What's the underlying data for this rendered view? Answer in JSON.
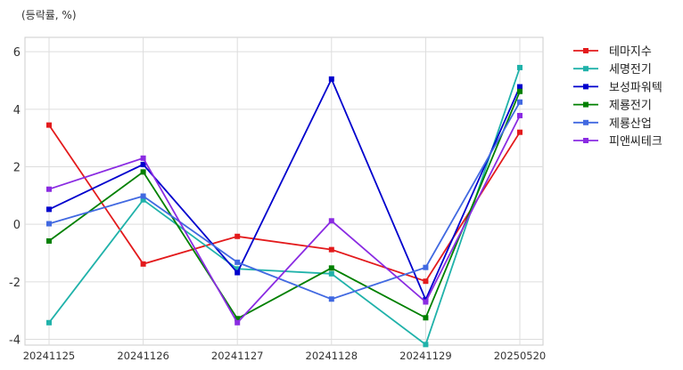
{
  "chart_data": {
    "type": "line",
    "title": "",
    "unit_label": "(등락률, %)",
    "xlabel": "",
    "ylabel": "",
    "x": [
      "20241125",
      "20241126",
      "20241127",
      "20241128",
      "20241129",
      "20250520"
    ],
    "ylim": [
      -4.2,
      6.5
    ],
    "yticks": [
      -4,
      -2,
      0,
      2,
      4,
      6
    ],
    "grid": true,
    "legend_position": "outside-top-right",
    "series": [
      {
        "name": "테마지수",
        "color": "#e31a1c",
        "values": [
          3.45,
          -1.38,
          -0.42,
          -0.88,
          -1.98,
          3.2
        ]
      },
      {
        "name": "세명전기",
        "color": "#20b2aa",
        "values": [
          -3.42,
          0.85,
          -1.55,
          -1.72,
          -4.18,
          5.45
        ]
      },
      {
        "name": "보성파워텍",
        "color": "#0000cd",
        "values": [
          0.52,
          2.08,
          -1.68,
          5.05,
          -2.62,
          4.78
        ]
      },
      {
        "name": "제룡전기",
        "color": "#008000",
        "values": [
          -0.58,
          1.82,
          -3.28,
          -1.52,
          -3.25,
          4.62
        ]
      },
      {
        "name": "제룡산업",
        "color": "#4169e1",
        "values": [
          0.02,
          0.98,
          -1.32,
          -2.6,
          -1.5,
          4.25
        ]
      },
      {
        "name": "피앤씨테크",
        "color": "#8a2be2",
        "values": [
          1.22,
          2.3,
          -3.42,
          0.12,
          -2.7,
          3.78
        ]
      }
    ]
  }
}
